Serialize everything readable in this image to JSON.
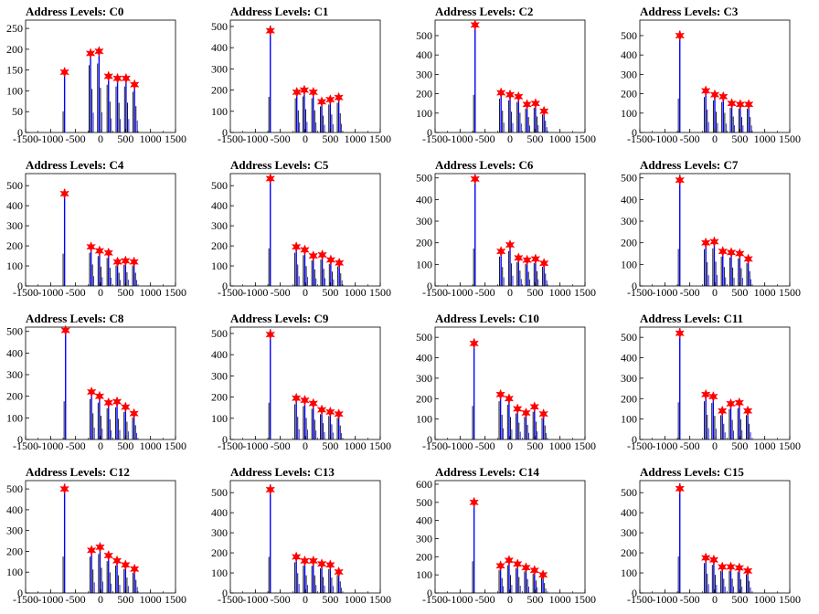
{
  "colors": {
    "histogram_primary": "#0000ff",
    "histogram_secondary": "#000000",
    "marker": "#ff0000",
    "axis": "#000000"
  },
  "chart_data": [
    {
      "type": "bar",
      "title": "Address Levels: C0",
      "xlim": [
        -1500,
        1500
      ],
      "ylim": [
        0,
        270
      ],
      "xticks": [
        -1500,
        -1000,
        -500,
        0,
        500,
        1000,
        1500
      ],
      "yticks": [
        0,
        50,
        100,
        150,
        200,
        250
      ],
      "peaks": [
        {
          "x": -720,
          "y": 145
        },
        {
          "x": -200,
          "y": 190
        },
        {
          "x": -30,
          "y": 195
        },
        {
          "x": 160,
          "y": 135
        },
        {
          "x": 340,
          "y": 130
        },
        {
          "x": 510,
          "y": 130
        },
        {
          "x": 680,
          "y": 115
        }
      ]
    },
    {
      "type": "bar",
      "title": "Address Levels: C1",
      "xlim": [
        -1500,
        1500
      ],
      "ylim": [
        0,
        530
      ],
      "xticks": [
        -1500,
        -1000,
        -500,
        0,
        500,
        1000,
        1500
      ],
      "yticks": [
        0,
        100,
        200,
        300,
        400,
        500
      ],
      "peaks": [
        {
          "x": -700,
          "y": 480
        },
        {
          "x": -170,
          "y": 190
        },
        {
          "x": -20,
          "y": 200
        },
        {
          "x": 160,
          "y": 190
        },
        {
          "x": 330,
          "y": 145
        },
        {
          "x": 500,
          "y": 155
        },
        {
          "x": 670,
          "y": 165
        }
      ]
    },
    {
      "type": "bar",
      "title": "Address Levels: C2",
      "xlim": [
        -1500,
        1500
      ],
      "ylim": [
        0,
        580
      ],
      "xticks": [
        -1500,
        -1000,
        -500,
        0,
        500,
        1000,
        1500
      ],
      "yticks": [
        0,
        100,
        200,
        300,
        400,
        500
      ],
      "peaks": [
        {
          "x": -700,
          "y": 555
        },
        {
          "x": -180,
          "y": 205
        },
        {
          "x": 0,
          "y": 195
        },
        {
          "x": 170,
          "y": 185
        },
        {
          "x": 340,
          "y": 145
        },
        {
          "x": 510,
          "y": 150
        },
        {
          "x": 680,
          "y": 110
        }
      ]
    },
    {
      "type": "bar",
      "title": "Address Levels: C3",
      "xlim": [
        -1500,
        1500
      ],
      "ylim": [
        0,
        580
      ],
      "xticks": [
        -1500,
        -1000,
        -500,
        0,
        500,
        1000,
        1500
      ],
      "yticks": [
        0,
        100,
        200,
        300,
        400,
        500
      ],
      "peaks": [
        {
          "x": -700,
          "y": 500
        },
        {
          "x": -180,
          "y": 215
        },
        {
          "x": 0,
          "y": 195
        },
        {
          "x": 170,
          "y": 185
        },
        {
          "x": 340,
          "y": 150
        },
        {
          "x": 510,
          "y": 145
        },
        {
          "x": 680,
          "y": 145
        }
      ]
    },
    {
      "type": "bar",
      "title": "Address Levels: C4",
      "xlim": [
        -1500,
        1500
      ],
      "ylim": [
        0,
        560
      ],
      "xticks": [
        -1500,
        -1000,
        -500,
        0,
        500,
        1000,
        1500
      ],
      "yticks": [
        0,
        100,
        200,
        300,
        400,
        500
      ],
      "peaks": [
        {
          "x": -720,
          "y": 460
        },
        {
          "x": -190,
          "y": 195
        },
        {
          "x": -20,
          "y": 175
        },
        {
          "x": 160,
          "y": 165
        },
        {
          "x": 340,
          "y": 120
        },
        {
          "x": 500,
          "y": 125
        },
        {
          "x": 670,
          "y": 120
        }
      ]
    },
    {
      "type": "bar",
      "title": "Address Levels: C5",
      "xlim": [
        -1500,
        1500
      ],
      "ylim": [
        0,
        560
      ],
      "xticks": [
        -1500,
        -1000,
        -500,
        0,
        500,
        1000,
        1500
      ],
      "yticks": [
        0,
        100,
        200,
        300,
        400,
        500
      ],
      "peaks": [
        {
          "x": -700,
          "y": 535
        },
        {
          "x": -180,
          "y": 195
        },
        {
          "x": -10,
          "y": 180
        },
        {
          "x": 160,
          "y": 150
        },
        {
          "x": 340,
          "y": 155
        },
        {
          "x": 510,
          "y": 130
        },
        {
          "x": 680,
          "y": 115
        }
      ]
    },
    {
      "type": "bar",
      "title": "Address Levels: C6",
      "xlim": [
        -1500,
        1500
      ],
      "ylim": [
        0,
        520
      ],
      "xticks": [
        -1500,
        -1000,
        -500,
        0,
        500,
        1000,
        1500
      ],
      "yticks": [
        0,
        100,
        200,
        300,
        400,
        500
      ],
      "peaks": [
        {
          "x": -700,
          "y": 495
        },
        {
          "x": -180,
          "y": 160
        },
        {
          "x": 0,
          "y": 190
        },
        {
          "x": 170,
          "y": 130
        },
        {
          "x": 340,
          "y": 120
        },
        {
          "x": 510,
          "y": 125
        },
        {
          "x": 680,
          "y": 105
        }
      ]
    },
    {
      "type": "bar",
      "title": "Address Levels: C7",
      "xlim": [
        -1500,
        1500
      ],
      "ylim": [
        0,
        520
      ],
      "xticks": [
        -1500,
        -1000,
        -500,
        0,
        500,
        1000,
        1500
      ],
      "yticks": [
        0,
        100,
        200,
        300,
        400,
        500
      ],
      "peaks": [
        {
          "x": -700,
          "y": 490
        },
        {
          "x": -180,
          "y": 200
        },
        {
          "x": -10,
          "y": 205
        },
        {
          "x": 160,
          "y": 160
        },
        {
          "x": 330,
          "y": 155
        },
        {
          "x": 500,
          "y": 150
        },
        {
          "x": 670,
          "y": 125
        }
      ]
    },
    {
      "type": "bar",
      "title": "Address Levels: C8",
      "xlim": [
        -1500,
        1500
      ],
      "ylim": [
        0,
        520
      ],
      "xticks": [
        -1500,
        -1000,
        -500,
        0,
        500,
        1000,
        1500
      ],
      "yticks": [
        0,
        100,
        200,
        300,
        400,
        500
      ],
      "peaks": [
        {
          "x": -700,
          "y": 505
        },
        {
          "x": -180,
          "y": 220
        },
        {
          "x": -20,
          "y": 200
        },
        {
          "x": 160,
          "y": 170
        },
        {
          "x": 330,
          "y": 175
        },
        {
          "x": 500,
          "y": 150
        },
        {
          "x": 670,
          "y": 120
        }
      ]
    },
    {
      "type": "bar",
      "title": "Address Levels: C9",
      "xlim": [
        -1500,
        1500
      ],
      "ylim": [
        0,
        530
      ],
      "xticks": [
        -1500,
        -1000,
        -500,
        0,
        500,
        1000,
        1500
      ],
      "yticks": [
        0,
        100,
        200,
        300,
        400,
        500
      ],
      "peaks": [
        {
          "x": -700,
          "y": 495
        },
        {
          "x": -180,
          "y": 195
        },
        {
          "x": -10,
          "y": 185
        },
        {
          "x": 160,
          "y": 170
        },
        {
          "x": 330,
          "y": 140
        },
        {
          "x": 500,
          "y": 130
        },
        {
          "x": 670,
          "y": 120
        }
      ]
    },
    {
      "type": "bar",
      "title": "Address Levels: C10",
      "xlim": [
        -1500,
        1500
      ],
      "ylim": [
        0,
        550
      ],
      "xticks": [
        -1500,
        -1000,
        -500,
        0,
        500,
        1000,
        1500
      ],
      "yticks": [
        0,
        100,
        200,
        300,
        400,
        500
      ],
      "peaks": [
        {
          "x": -720,
          "y": 470
        },
        {
          "x": -190,
          "y": 220
        },
        {
          "x": -20,
          "y": 200
        },
        {
          "x": 150,
          "y": 150
        },
        {
          "x": 320,
          "y": 130
        },
        {
          "x": 490,
          "y": 160
        },
        {
          "x": 670,
          "y": 125
        }
      ]
    },
    {
      "type": "bar",
      "title": "Address Levels: C11",
      "xlim": [
        -1500,
        1500
      ],
      "ylim": [
        0,
        550
      ],
      "xticks": [
        -1500,
        -1000,
        -500,
        0,
        500,
        1000,
        1500
      ],
      "yticks": [
        0,
        100,
        200,
        300,
        400,
        500
      ],
      "peaks": [
        {
          "x": -700,
          "y": 520
        },
        {
          "x": -180,
          "y": 220
        },
        {
          "x": -30,
          "y": 210
        },
        {
          "x": 150,
          "y": 140
        },
        {
          "x": 320,
          "y": 175
        },
        {
          "x": 490,
          "y": 180
        },
        {
          "x": 660,
          "y": 140
        }
      ]
    },
    {
      "type": "bar",
      "title": "Address Levels: C12",
      "xlim": [
        -1500,
        1500
      ],
      "ylim": [
        0,
        540
      ],
      "xticks": [
        -1500,
        -1000,
        -500,
        0,
        500,
        1000,
        1500
      ],
      "yticks": [
        0,
        100,
        200,
        300,
        400,
        500
      ],
      "peaks": [
        {
          "x": -720,
          "y": 500
        },
        {
          "x": -180,
          "y": 205
        },
        {
          "x": -10,
          "y": 220
        },
        {
          "x": 160,
          "y": 180
        },
        {
          "x": 330,
          "y": 155
        },
        {
          "x": 500,
          "y": 135
        },
        {
          "x": 680,
          "y": 115
        }
      ]
    },
    {
      "type": "bar",
      "title": "Address Levels: C13",
      "xlim": [
        -1500,
        1500
      ],
      "ylim": [
        0,
        560
      ],
      "xticks": [
        -1500,
        -1000,
        -500,
        0,
        500,
        1000,
        1500
      ],
      "yticks": [
        0,
        100,
        200,
        300,
        400,
        500
      ],
      "peaks": [
        {
          "x": -700,
          "y": 515
        },
        {
          "x": -180,
          "y": 180
        },
        {
          "x": -10,
          "y": 160
        },
        {
          "x": 160,
          "y": 160
        },
        {
          "x": 330,
          "y": 145
        },
        {
          "x": 500,
          "y": 140
        },
        {
          "x": 670,
          "y": 105
        }
      ]
    },
    {
      "type": "bar",
      "title": "Address Levels: C14",
      "xlim": [
        -1500,
        1500
      ],
      "ylim": [
        0,
        620
      ],
      "xticks": [
        -1500,
        -1000,
        -500,
        0,
        500,
        1000,
        1500
      ],
      "yticks": [
        0,
        100,
        200,
        300,
        400,
        500,
        600
      ],
      "peaks": [
        {
          "x": -720,
          "y": 500
        },
        {
          "x": -190,
          "y": 150
        },
        {
          "x": -20,
          "y": 180
        },
        {
          "x": 150,
          "y": 160
        },
        {
          "x": 320,
          "y": 140
        },
        {
          "x": 490,
          "y": 125
        },
        {
          "x": 660,
          "y": 100
        }
      ]
    },
    {
      "type": "bar",
      "title": "Address Levels: C15",
      "xlim": [
        -1500,
        1500
      ],
      "ylim": [
        0,
        560
      ],
      "xticks": [
        -1500,
        -1000,
        -500,
        0,
        500,
        1000,
        1500
      ],
      "yticks": [
        0,
        100,
        200,
        300,
        400,
        500
      ],
      "peaks": [
        {
          "x": -700,
          "y": 520
        },
        {
          "x": -180,
          "y": 175
        },
        {
          "x": -20,
          "y": 165
        },
        {
          "x": 150,
          "y": 130
        },
        {
          "x": 320,
          "y": 130
        },
        {
          "x": 490,
          "y": 125
        },
        {
          "x": 660,
          "y": 110
        }
      ]
    }
  ]
}
